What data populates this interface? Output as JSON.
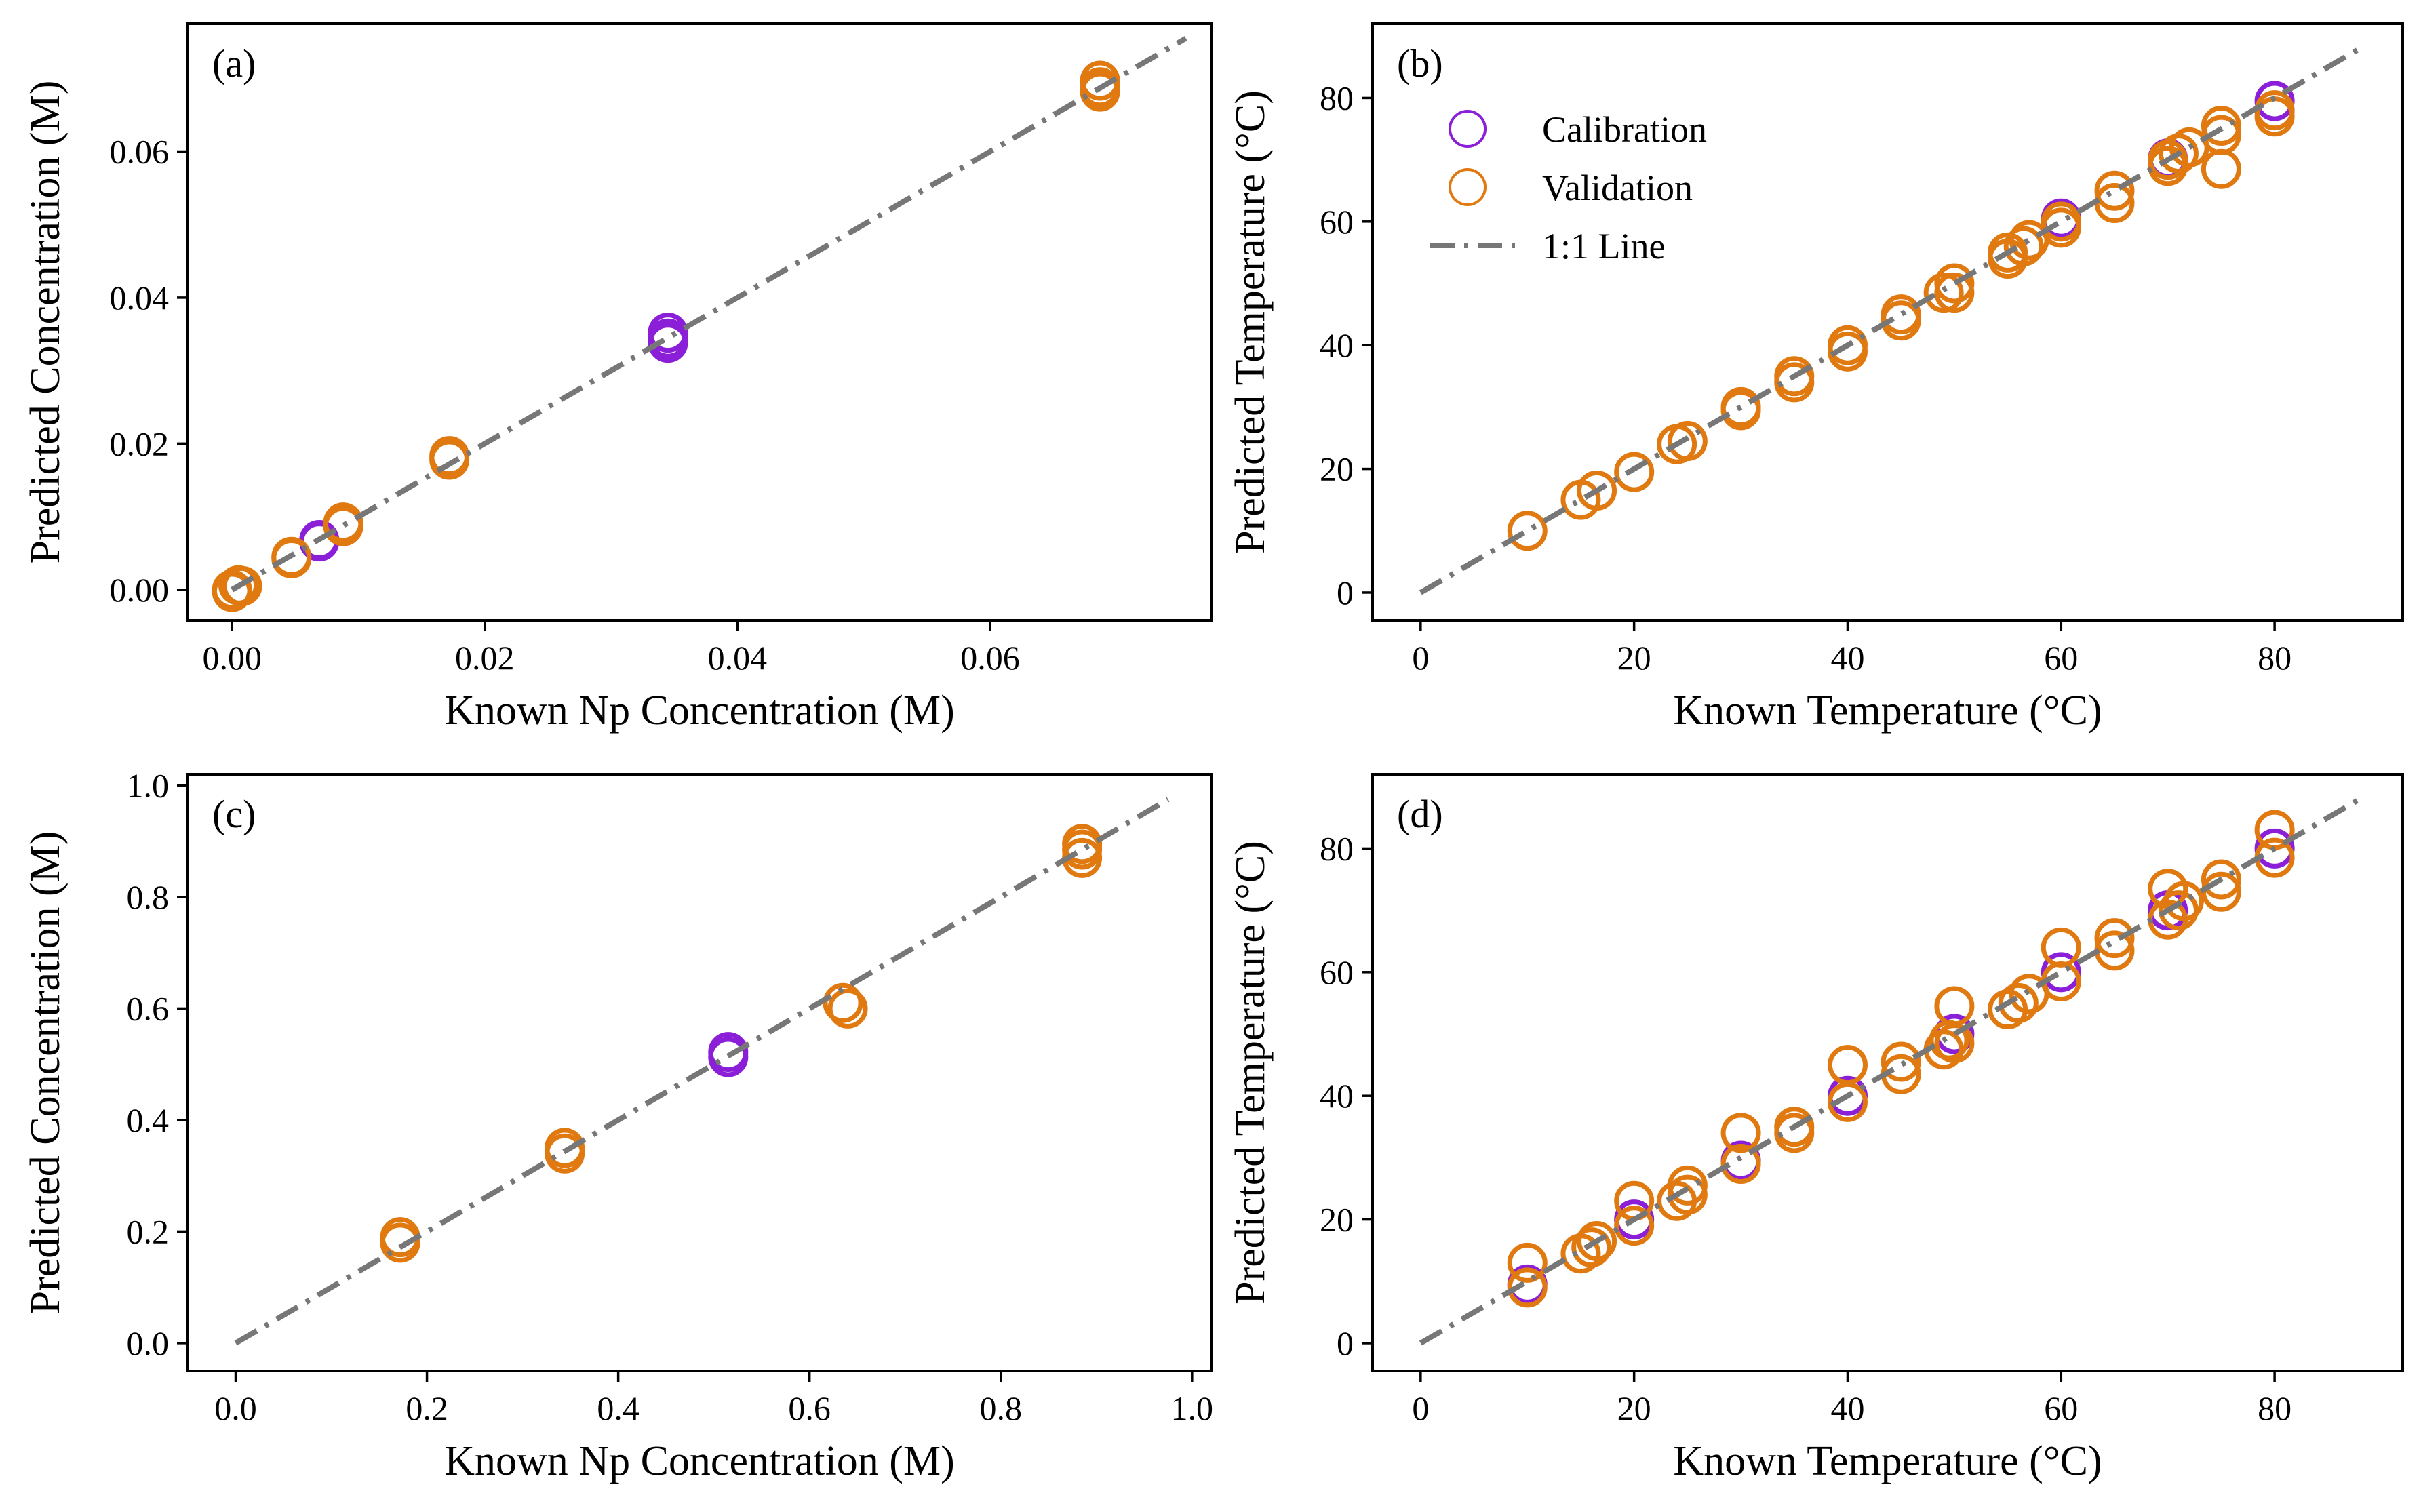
{
  "figure": {
    "panel_count": 4
  },
  "colors": {
    "calibration": "#8B1FD8",
    "validation": "#E07A10",
    "identity_line": "#777777",
    "axes": "#000000"
  },
  "chart_data": [
    {
      "type": "scatter",
      "panel_label": "(a)",
      "xlabel": "Known Np Concentration (M)",
      "ylabel": "Predicted Concentration (M)",
      "xlim": [
        -0.0035,
        0.0775
      ],
      "ylim": [
        -0.0042,
        0.0775
      ],
      "xticks": [
        0.0,
        0.02,
        0.04,
        0.06
      ],
      "xtick_labels": [
        "0.00",
        "0.02",
        "0.04",
        "0.06"
      ],
      "yticks": [
        0.0,
        0.02,
        0.04,
        0.06
      ],
      "ytick_labels": [
        "0.00",
        "0.02",
        "0.04",
        "0.06"
      ],
      "line": {
        "name": "1:1 Line",
        "x": [
          0.0,
          0.0755
        ],
        "y": [
          0.0,
          0.0755
        ]
      },
      "legend": null,
      "series": [
        {
          "name": "Calibration",
          "x": [
            0.0069,
            0.0069,
            0.0345,
            0.0345,
            0.0345
          ],
          "y": [
            0.0068,
            0.0066,
            0.0352,
            0.0344,
            0.0338
          ]
        },
        {
          "name": "Validation",
          "x": [
            0.0,
            0.0,
            0.0005,
            0.0008,
            0.0047,
            0.0047,
            0.0088,
            0.0088,
            0.0172,
            0.0172,
            0.0687,
            0.0687,
            0.0687
          ],
          "y": [
            0.0,
            -0.0003,
            0.0006,
            0.0005,
            0.0045,
            0.0043,
            0.0092,
            0.0087,
            0.0183,
            0.0178,
            0.0697,
            0.0688,
            0.0682
          ]
        }
      ]
    },
    {
      "type": "scatter",
      "panel_label": "(b)",
      "xlabel": "Known Temperature (°C)",
      "ylabel": "Predicted Temperature (°C)",
      "xlim": [
        -4.5,
        92
      ],
      "ylim": [
        -4.5,
        92
      ],
      "xticks": [
        0,
        20,
        40,
        60,
        80
      ],
      "xtick_labels": [
        "0",
        "20",
        "40",
        "60",
        "80"
      ],
      "yticks": [
        0,
        20,
        40,
        60,
        80
      ],
      "ytick_labels": [
        "0",
        "20",
        "40",
        "60",
        "80"
      ],
      "line": {
        "name": "1:1 Line",
        "x": [
          0,
          88
        ],
        "y": [
          0,
          88
        ]
      },
      "legend": {
        "position": "top-left",
        "entries": [
          "Calibration",
          "Validation",
          "1:1 Line"
        ]
      },
      "series": [
        {
          "name": "Calibration",
          "x": [
            60,
            70,
            80
          ],
          "y": [
            60.5,
            70.2,
            79.5
          ]
        },
        {
          "name": "Validation",
          "x": [
            10,
            15,
            16.5,
            20,
            24,
            25,
            30,
            30,
            35,
            35,
            40,
            40,
            45,
            45,
            49,
            50,
            50,
            55,
            55,
            56.5,
            57,
            60,
            60,
            65,
            65,
            70,
            70,
            71,
            72,
            75,
            75,
            75,
            80,
            80
          ],
          "y": [
            10,
            15,
            16.5,
            19.5,
            24,
            24.5,
            30,
            29.5,
            35,
            34,
            40,
            39,
            45,
            44,
            48.5,
            50,
            48.5,
            55,
            54,
            56,
            57,
            60,
            59,
            65,
            63,
            70,
            69,
            71,
            72,
            74,
            75.5,
            68.5,
            78,
            77
          ]
        }
      ]
    },
    {
      "type": "scatter",
      "panel_label": "(c)",
      "xlabel": "Known Np Concentration (M)",
      "ylabel": "Predicted Concentration (M)",
      "xlim": [
        -0.05,
        1.02
      ],
      "ylim": [
        -0.05,
        1.02
      ],
      "xticks": [
        0.0,
        0.2,
        0.4,
        0.6,
        0.8,
        1.0
      ],
      "xtick_labels": [
        "0.0",
        "0.2",
        "0.4",
        "0.6",
        "0.8",
        "1.0"
      ],
      "yticks": [
        0.0,
        0.2,
        0.4,
        0.6,
        0.8,
        1.0
      ],
      "ytick_labels": [
        "0.0",
        "0.2",
        "0.4",
        "0.6",
        "0.8",
        "1.0"
      ],
      "line": {
        "name": "1:1 Line",
        "x": [
          0.0,
          0.975
        ],
        "y": [
          0.0,
          0.975
        ]
      },
      "legend": null,
      "series": [
        {
          "name": "Calibration",
          "x": [
            0.515,
            0.515
          ],
          "y": [
            0.522,
            0.513
          ]
        },
        {
          "name": "Validation",
          "x": [
            0.172,
            0.172,
            0.344,
            0.344,
            0.635,
            0.64,
            0.885,
            0.885,
            0.885
          ],
          "y": [
            0.19,
            0.18,
            0.35,
            0.34,
            0.61,
            0.6,
            0.895,
            0.885,
            0.87
          ]
        }
      ]
    },
    {
      "type": "scatter",
      "panel_label": "(d)",
      "xlabel": "Known Temperature (°C)",
      "ylabel": "Predicted Temperature (°C)",
      "xlim": [
        -4.5,
        92
      ],
      "ylim": [
        -4.5,
        92
      ],
      "xticks": [
        0,
        20,
        40,
        60,
        80
      ],
      "xtick_labels": [
        "0",
        "20",
        "40",
        "60",
        "80"
      ],
      "yticks": [
        0,
        20,
        40,
        60,
        80
      ],
      "ytick_labels": [
        "0",
        "20",
        "40",
        "60",
        "80"
      ],
      "line": {
        "name": "1:1 Line",
        "x": [
          0,
          88
        ],
        "y": [
          0,
          88
        ]
      },
      "legend": null,
      "series": [
        {
          "name": "Calibration",
          "x": [
            10,
            20,
            30,
            40,
            50,
            60,
            70,
            80
          ],
          "y": [
            9.5,
            20,
            29.5,
            40,
            50,
            60,
            70,
            80
          ]
        },
        {
          "name": "Validation",
          "x": [
            10,
            10,
            15,
            16,
            16.5,
            20,
            20,
            24,
            25,
            25,
            30,
            30,
            35,
            35,
            40,
            40,
            45,
            45,
            49,
            49.5,
            50,
            50,
            55,
            56,
            57,
            60,
            60,
            65,
            65,
            70,
            70,
            71,
            71.5,
            75,
            75,
            80,
            80
          ],
          "y": [
            13,
            9,
            14.5,
            15.5,
            16.5,
            23,
            19,
            23,
            24,
            25.5,
            34,
            29,
            35,
            34,
            45,
            39,
            45.5,
            43.5,
            47.5,
            49,
            54.5,
            48.5,
            54,
            55,
            56.5,
            64,
            58.5,
            65.5,
            63.5,
            73.5,
            68.5,
            70,
            71.5,
            75,
            73,
            83,
            78.5
          ]
        }
      ]
    }
  ]
}
